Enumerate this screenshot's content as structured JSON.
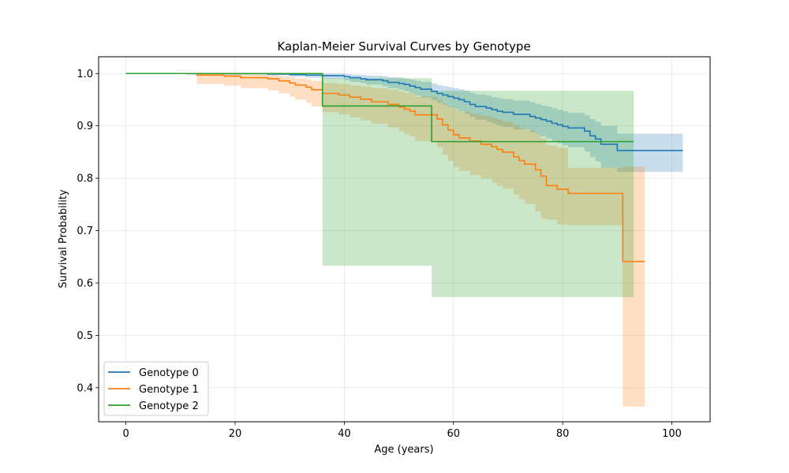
{
  "chart_data": {
    "type": "line",
    "title": "Kaplan-Meier Survival Curves by Genotype",
    "xlabel": "Age (years)",
    "ylabel": "Survival Probability",
    "xlim": [
      -5,
      107
    ],
    "ylim": [
      0.335,
      1.032
    ],
    "xticks": [
      0,
      20,
      40,
      60,
      80,
      100
    ],
    "yticks": [
      0.4,
      0.5,
      0.6,
      0.7,
      0.8,
      0.9,
      1.0
    ],
    "xtick_labels": [
      "0",
      "20",
      "40",
      "60",
      "80",
      "100"
    ],
    "ytick_labels": [
      "0.4",
      "0.5",
      "0.6",
      "0.7",
      "0.8",
      "0.9",
      "1.0"
    ],
    "grid": true,
    "legend_position": "lower-left",
    "series": [
      {
        "name": "Genotype 0",
        "color": "#1f77b4",
        "steps": [
          [
            0,
            1.0
          ],
          [
            26,
            0.999
          ],
          [
            30,
            0.998
          ],
          [
            33,
            0.997
          ],
          [
            36,
            0.996
          ],
          [
            40,
            0.994
          ],
          [
            41,
            0.992
          ],
          [
            43,
            0.99
          ],
          [
            44,
            0.988
          ],
          [
            47,
            0.986
          ],
          [
            48,
            0.983
          ],
          [
            50,
            0.981
          ],
          [
            51,
            0.979
          ],
          [
            52,
            0.976
          ],
          [
            53,
            0.973
          ],
          [
            54,
            0.97
          ],
          [
            56,
            0.966
          ],
          [
            57,
            0.962
          ],
          [
            58,
            0.959
          ],
          [
            59,
            0.956
          ],
          [
            60,
            0.953
          ],
          [
            61,
            0.95
          ],
          [
            62,
            0.946
          ],
          [
            63,
            0.941
          ],
          [
            64,
            0.937
          ],
          [
            66,
            0.934
          ],
          [
            67,
            0.931
          ],
          [
            68,
            0.928
          ],
          [
            69,
            0.926
          ],
          [
            71,
            0.922
          ],
          [
            74,
            0.918
          ],
          [
            75,
            0.915
          ],
          [
            76,
            0.912
          ],
          [
            77,
            0.909
          ],
          [
            78,
            0.905
          ],
          [
            79,
            0.902
          ],
          [
            80,
            0.899
          ],
          [
            81,
            0.896
          ],
          [
            84,
            0.89
          ],
          [
            85,
            0.881
          ],
          [
            86,
            0.875
          ],
          [
            87,
            0.865
          ],
          [
            90,
            0.853
          ],
          [
            102,
            0.853
          ]
        ],
        "ci_steps": [
          [
            0,
            1.0,
            1.0
          ],
          [
            11,
            0.997,
            1.0
          ],
          [
            26,
            0.997,
            1.0
          ],
          [
            30,
            0.994,
            1.0
          ],
          [
            33,
            0.992,
            1.0
          ],
          [
            36,
            0.99,
            1.0
          ],
          [
            40,
            0.987,
            0.999
          ],
          [
            41,
            0.984,
            0.998
          ],
          [
            43,
            0.982,
            0.997
          ],
          [
            44,
            0.979,
            0.996
          ],
          [
            47,
            0.976,
            0.995
          ],
          [
            48,
            0.972,
            0.993
          ],
          [
            50,
            0.969,
            0.992
          ],
          [
            51,
            0.966,
            0.99
          ],
          [
            52,
            0.962,
            0.988
          ],
          [
            53,
            0.958,
            0.986
          ],
          [
            54,
            0.954,
            0.984
          ],
          [
            56,
            0.949,
            0.981
          ],
          [
            57,
            0.944,
            0.978
          ],
          [
            58,
            0.94,
            0.976
          ],
          [
            59,
            0.936,
            0.974
          ],
          [
            60,
            0.932,
            0.972
          ],
          [
            61,
            0.928,
            0.97
          ],
          [
            62,
            0.923,
            0.967
          ],
          [
            63,
            0.917,
            0.963
          ],
          [
            64,
            0.912,
            0.96
          ],
          [
            66,
            0.908,
            0.958
          ],
          [
            67,
            0.904,
            0.955
          ],
          [
            68,
            0.901,
            0.953
          ],
          [
            69,
            0.898,
            0.951
          ],
          [
            71,
            0.893,
            0.948
          ],
          [
            74,
            0.888,
            0.945
          ],
          [
            75,
            0.884,
            0.942
          ],
          [
            76,
            0.88,
            0.939
          ],
          [
            77,
            0.876,
            0.937
          ],
          [
            78,
            0.871,
            0.934
          ],
          [
            79,
            0.867,
            0.931
          ],
          [
            80,
            0.863,
            0.928
          ],
          [
            81,
            0.859,
            0.925
          ],
          [
            84,
            0.851,
            0.92
          ],
          [
            85,
            0.84,
            0.913
          ],
          [
            86,
            0.832,
            0.908
          ],
          [
            87,
            0.82,
            0.9
          ],
          [
            90,
            0.812,
            0.885
          ],
          [
            102,
            0.812,
            0.885
          ]
        ]
      },
      {
        "name": "Genotype 1",
        "color": "#ff7f0e",
        "steps": [
          [
            0,
            1.0
          ],
          [
            13,
            0.997
          ],
          [
            18,
            0.995
          ],
          [
            21,
            0.992
          ],
          [
            26,
            0.99
          ],
          [
            28,
            0.986
          ],
          [
            30,
            0.982
          ],
          [
            31,
            0.978
          ],
          [
            33,
            0.974
          ],
          [
            34,
            0.969
          ],
          [
            36,
            0.962
          ],
          [
            39,
            0.959
          ],
          [
            41,
            0.955
          ],
          [
            43,
            0.951
          ],
          [
            45,
            0.946
          ],
          [
            48,
            0.941
          ],
          [
            50,
            0.936
          ],
          [
            51,
            0.932
          ],
          [
            52,
            0.928
          ],
          [
            53,
            0.921
          ],
          [
            57,
            0.913
          ],
          [
            58,
            0.902
          ],
          [
            59,
            0.892
          ],
          [
            60,
            0.883
          ],
          [
            61,
            0.877
          ],
          [
            63,
            0.871
          ],
          [
            65,
            0.865
          ],
          [
            67,
            0.86
          ],
          [
            68,
            0.855
          ],
          [
            69,
            0.85
          ],
          [
            71,
            0.841
          ],
          [
            72,
            0.834
          ],
          [
            73,
            0.827
          ],
          [
            75,
            0.816
          ],
          [
            76,
            0.804
          ],
          [
            77,
            0.786
          ],
          [
            79,
            0.779
          ],
          [
            81,
            0.771
          ],
          [
            91,
            0.641
          ],
          [
            95,
            0.641
          ]
        ],
        "ci_steps": [
          [
            0,
            1.0,
            1.0
          ],
          [
            13,
            0.98,
            1.0
          ],
          [
            18,
            0.977,
            0.999
          ],
          [
            21,
            0.972,
            0.998
          ],
          [
            26,
            0.968,
            0.997
          ],
          [
            28,
            0.962,
            0.995
          ],
          [
            30,
            0.956,
            0.993
          ],
          [
            31,
            0.95,
            0.991
          ],
          [
            33,
            0.944,
            0.989
          ],
          [
            34,
            0.937,
            0.986
          ],
          [
            36,
            0.926,
            0.982
          ],
          [
            39,
            0.922,
            0.98
          ],
          [
            41,
            0.916,
            0.977
          ],
          [
            43,
            0.91,
            0.975
          ],
          [
            45,
            0.904,
            0.972
          ],
          [
            48,
            0.897,
            0.969
          ],
          [
            50,
            0.89,
            0.966
          ],
          [
            51,
            0.885,
            0.963
          ],
          [
            52,
            0.88,
            0.961
          ],
          [
            53,
            0.871,
            0.956
          ],
          [
            57,
            0.859,
            0.95
          ],
          [
            58,
            0.845,
            0.943
          ],
          [
            59,
            0.833,
            0.937
          ],
          [
            60,
            0.822,
            0.931
          ],
          [
            61,
            0.814,
            0.927
          ],
          [
            63,
            0.806,
            0.923
          ],
          [
            65,
            0.799,
            0.919
          ],
          [
            67,
            0.792,
            0.915
          ],
          [
            68,
            0.786,
            0.912
          ],
          [
            69,
            0.78,
            0.908
          ],
          [
            71,
            0.769,
            0.902
          ],
          [
            72,
            0.76,
            0.897
          ],
          [
            73,
            0.751,
            0.892
          ],
          [
            75,
            0.737,
            0.884
          ],
          [
            76,
            0.723,
            0.876
          ],
          [
            77,
            0.721,
            0.863
          ],
          [
            79,
            0.712,
            0.858
          ],
          [
            81,
            0.71,
            0.82
          ],
          [
            91,
            0.364,
            0.822
          ],
          [
            95,
            0.364,
            0.822
          ]
        ]
      },
      {
        "name": "Genotype 2",
        "color": "#2ca02c",
        "steps": [
          [
            0,
            1.0
          ],
          [
            36,
            0.938
          ],
          [
            56,
            0.87
          ],
          [
            93,
            0.87
          ]
        ],
        "ci_steps": [
          [
            0,
            1.0,
            1.0
          ],
          [
            36,
            0.633,
            0.991
          ],
          [
            56,
            0.573,
            0.967
          ],
          [
            93,
            0.573,
            0.967
          ]
        ]
      }
    ]
  }
}
